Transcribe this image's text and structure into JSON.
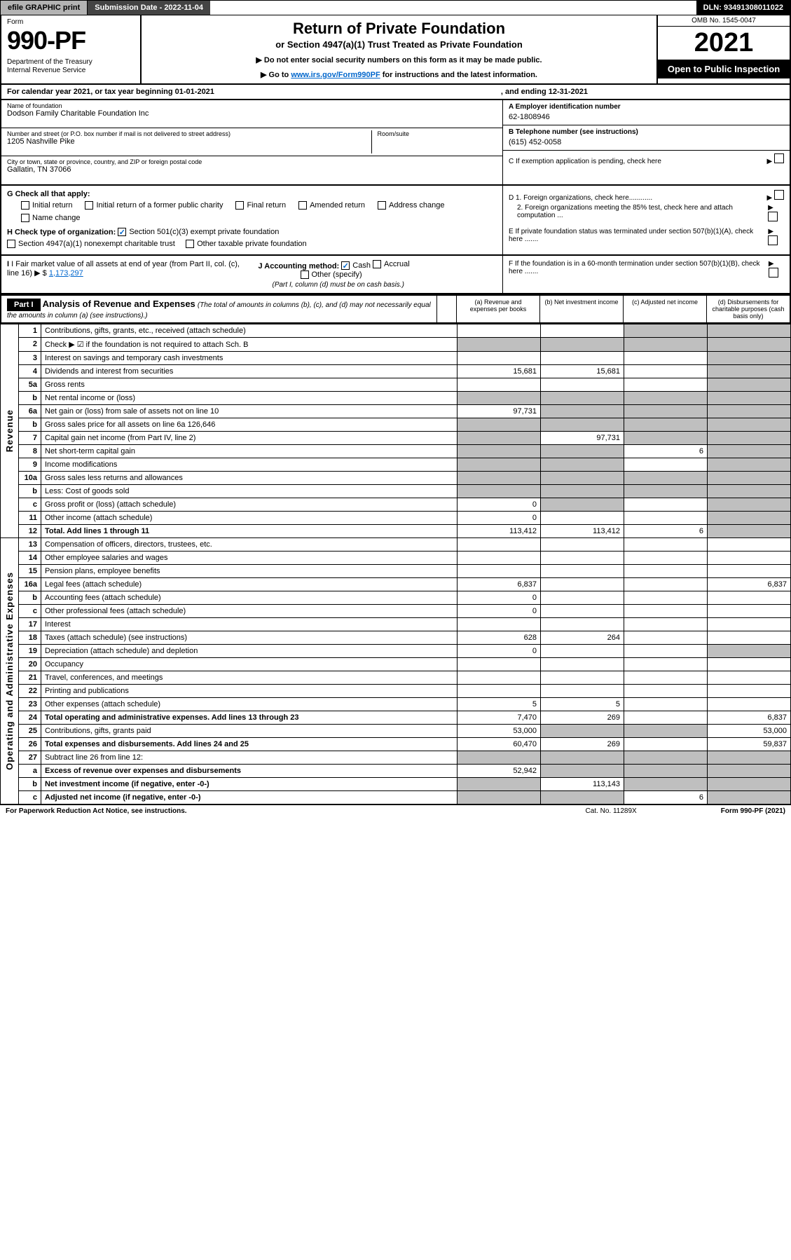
{
  "topbar": {
    "efile": "efile GRAPHIC print",
    "submission": "Submission Date - 2022-11-04",
    "dln": "DLN: 93491308011022"
  },
  "header": {
    "form": "Form",
    "number": "990-PF",
    "dept": "Department of the Treasury\nInternal Revenue Service",
    "title": "Return of Private Foundation",
    "subtitle": "or Section 4947(a)(1) Trust Treated as Private Foundation",
    "note1": "▶ Do not enter social security numbers on this form as it may be made public.",
    "note2_pre": "▶ Go to ",
    "note2_link": "www.irs.gov/Form990PF",
    "note2_post": " for instructions and the latest information.",
    "omb": "OMB No. 1545-0047",
    "year": "2021",
    "open": "Open to Public Inspection"
  },
  "yearline": {
    "begin": "For calendar year 2021, or tax year beginning 01-01-2021",
    "end": ", and ending 12-31-2021"
  },
  "info": {
    "name_label": "Name of foundation",
    "name": "Dodson Family Charitable Foundation Inc",
    "addr_label": "Number and street (or P.O. box number if mail is not delivered to street address)",
    "addr": "1205 Nashville Pike",
    "room_label": "Room/suite",
    "city_label": "City or town, state or province, country, and ZIP or foreign postal code",
    "city": "Gallatin, TN  37066",
    "ein_label": "A Employer identification number",
    "ein": "62-1808946",
    "phone_label": "B Telephone number (see instructions)",
    "phone": "(615) 452-0058",
    "c_label": "C If exemption application is pending, check here"
  },
  "g": {
    "label": "G Check all that apply:",
    "opts": [
      "Initial return",
      "Initial return of a former public charity",
      "Final return",
      "Amended return",
      "Address change",
      "Name change"
    ]
  },
  "h": {
    "label": "H Check type of organization:",
    "o1": "Section 501(c)(3) exempt private foundation",
    "o2": "Section 4947(a)(1) nonexempt charitable trust",
    "o3": "Other taxable private foundation"
  },
  "i": {
    "label": "I Fair market value of all assets at end of year (from Part II, col. (c), line 16)",
    "amt": "1,173,297"
  },
  "j": {
    "label": "J Accounting method:",
    "cash": "Cash",
    "accrual": "Accrual",
    "other": "Other (specify)",
    "note": "(Part I, column (d) must be on cash basis.)"
  },
  "d": {
    "d1": "D 1. Foreign organizations, check here............",
    "d2": "2. Foreign organizations meeting the 85% test, check here and attach computation ...",
    "e": "E  If private foundation status was terminated under section 507(b)(1)(A), check here .......",
    "f": "F  If the foundation is in a 60-month termination under section 507(b)(1)(B), check here ......."
  },
  "part1": {
    "label": "Part I",
    "title": "Analysis of Revenue and Expenses",
    "note": "(The total of amounts in columns (b), (c), and (d) may not necessarily equal the amounts in column (a) (see instructions).)",
    "colA": "(a)   Revenue and expenses per books",
    "colB": "(b)   Net investment income",
    "colC": "(c)   Adjusted net income",
    "colD": "(d)   Disbursements for charitable purposes (cash basis only)"
  },
  "sides": {
    "rev": "Revenue",
    "exp": "Operating and Administrative Expenses"
  },
  "rows": [
    {
      "n": "1",
      "d": "Contributions, gifts, grants, etc., received (attach schedule)",
      "a": "",
      "b": "",
      "c": "sh",
      "dd": "sh"
    },
    {
      "n": "2",
      "d": "Check ▶ ☑ if the foundation is not required to attach Sch. B",
      "a": "sh",
      "b": "sh",
      "c": "sh",
      "dd": "sh"
    },
    {
      "n": "3",
      "d": "Interest on savings and temporary cash investments",
      "a": "",
      "b": "",
      "c": "",
      "dd": "sh"
    },
    {
      "n": "4",
      "d": "Dividends and interest from securities",
      "a": "15,681",
      "b": "15,681",
      "c": "",
      "dd": "sh"
    },
    {
      "n": "5a",
      "d": "Gross rents",
      "a": "",
      "b": "",
      "c": "",
      "dd": "sh"
    },
    {
      "n": "b",
      "d": "Net rental income or (loss)",
      "a": "sh",
      "b": "sh",
      "c": "sh",
      "dd": "sh"
    },
    {
      "n": "6a",
      "d": "Net gain or (loss) from sale of assets not on line 10",
      "a": "97,731",
      "b": "sh",
      "c": "sh",
      "dd": "sh"
    },
    {
      "n": "b",
      "d": "Gross sales price for all assets on line 6a          126,646",
      "a": "sh",
      "b": "sh",
      "c": "sh",
      "dd": "sh"
    },
    {
      "n": "7",
      "d": "Capital gain net income (from Part IV, line 2)",
      "a": "sh",
      "b": "97,731",
      "c": "sh",
      "dd": "sh"
    },
    {
      "n": "8",
      "d": "Net short-term capital gain",
      "a": "sh",
      "b": "sh",
      "c": "6",
      "dd": "sh"
    },
    {
      "n": "9",
      "d": "Income modifications",
      "a": "sh",
      "b": "sh",
      "c": "",
      "dd": "sh"
    },
    {
      "n": "10a",
      "d": "Gross sales less returns and allowances",
      "a": "sh",
      "b": "sh",
      "c": "sh",
      "dd": "sh"
    },
    {
      "n": "b",
      "d": "Less: Cost of goods sold",
      "a": "sh",
      "b": "sh",
      "c": "sh",
      "dd": "sh"
    },
    {
      "n": "c",
      "d": "Gross profit or (loss) (attach schedule)",
      "a": "0",
      "b": "sh",
      "c": "",
      "dd": "sh"
    },
    {
      "n": "11",
      "d": "Other income (attach schedule)",
      "a": "0",
      "b": "",
      "c": "",
      "dd": "sh"
    },
    {
      "n": "12",
      "d": "Total. Add lines 1 through 11",
      "a": "113,412",
      "b": "113,412",
      "c": "6",
      "dd": "sh",
      "bold": true
    },
    {
      "n": "13",
      "d": "Compensation of officers, directors, trustees, etc.",
      "a": "",
      "b": "",
      "c": "",
      "dd": ""
    },
    {
      "n": "14",
      "d": "Other employee salaries and wages",
      "a": "",
      "b": "",
      "c": "",
      "dd": ""
    },
    {
      "n": "15",
      "d": "Pension plans, employee benefits",
      "a": "",
      "b": "",
      "c": "",
      "dd": ""
    },
    {
      "n": "16a",
      "d": "Legal fees (attach schedule)",
      "a": "6,837",
      "b": "",
      "c": "",
      "dd": "6,837"
    },
    {
      "n": "b",
      "d": "Accounting fees (attach schedule)",
      "a": "0",
      "b": "",
      "c": "",
      "dd": ""
    },
    {
      "n": "c",
      "d": "Other professional fees (attach schedule)",
      "a": "0",
      "b": "",
      "c": "",
      "dd": ""
    },
    {
      "n": "17",
      "d": "Interest",
      "a": "",
      "b": "",
      "c": "",
      "dd": ""
    },
    {
      "n": "18",
      "d": "Taxes (attach schedule) (see instructions)",
      "a": "628",
      "b": "264",
      "c": "",
      "dd": ""
    },
    {
      "n": "19",
      "d": "Depreciation (attach schedule) and depletion",
      "a": "0",
      "b": "",
      "c": "",
      "dd": "sh"
    },
    {
      "n": "20",
      "d": "Occupancy",
      "a": "",
      "b": "",
      "c": "",
      "dd": ""
    },
    {
      "n": "21",
      "d": "Travel, conferences, and meetings",
      "a": "",
      "b": "",
      "c": "",
      "dd": ""
    },
    {
      "n": "22",
      "d": "Printing and publications",
      "a": "",
      "b": "",
      "c": "",
      "dd": ""
    },
    {
      "n": "23",
      "d": "Other expenses (attach schedule)",
      "a": "5",
      "b": "5",
      "c": "",
      "dd": ""
    },
    {
      "n": "24",
      "d": "Total operating and administrative expenses.  Add lines 13 through 23",
      "a": "7,470",
      "b": "269",
      "c": "",
      "dd": "6,837",
      "bold": true
    },
    {
      "n": "25",
      "d": "Contributions, gifts, grants paid",
      "a": "53,000",
      "b": "sh",
      "c": "sh",
      "dd": "53,000"
    },
    {
      "n": "26",
      "d": "Total expenses and disbursements. Add lines 24 and 25",
      "a": "60,470",
      "b": "269",
      "c": "",
      "dd": "59,837",
      "bold": true
    },
    {
      "n": "27",
      "d": "Subtract line 26 from line 12:",
      "a": "sh",
      "b": "sh",
      "c": "sh",
      "dd": "sh"
    },
    {
      "n": "a",
      "d": "Excess of revenue over expenses and disbursements",
      "a": "52,942",
      "b": "sh",
      "c": "sh",
      "dd": "sh",
      "bold": true
    },
    {
      "n": "b",
      "d": "Net investment income (if negative, enter -0-)",
      "a": "sh",
      "b": "113,143",
      "c": "sh",
      "dd": "sh",
      "bold": true
    },
    {
      "n": "c",
      "d": "Adjusted net income (if negative, enter -0-)",
      "a": "sh",
      "b": "sh",
      "c": "6",
      "dd": "sh",
      "bold": true
    }
  ],
  "footer": {
    "left": "For Paperwork Reduction Act Notice, see instructions.",
    "cat": "Cat. No. 11289X",
    "right": "Form 990-PF (2021)"
  }
}
